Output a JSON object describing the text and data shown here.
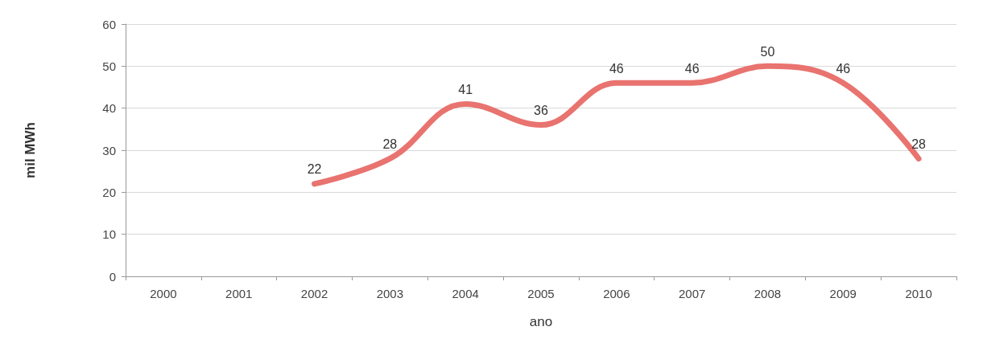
{
  "chart_data": {
    "type": "line",
    "xlabel": "ano",
    "ylabel": "mil MWh",
    "categories": [
      "2000",
      "2001",
      "2002",
      "2003",
      "2004",
      "2005",
      "2006",
      "2007",
      "2008",
      "2009",
      "2010"
    ],
    "series": [
      {
        "color": "#e8736f",
        "values": [
          null,
          null,
          22,
          28,
          41,
          36,
          46,
          46,
          50,
          46,
          28
        ]
      }
    ],
    "ylim": [
      0,
      60
    ],
    "yticks": [
      0,
      10,
      20,
      30,
      40,
      50,
      60
    ],
    "grid": "y",
    "marker": "none",
    "line_style": "solid",
    "data_labels": true
  }
}
